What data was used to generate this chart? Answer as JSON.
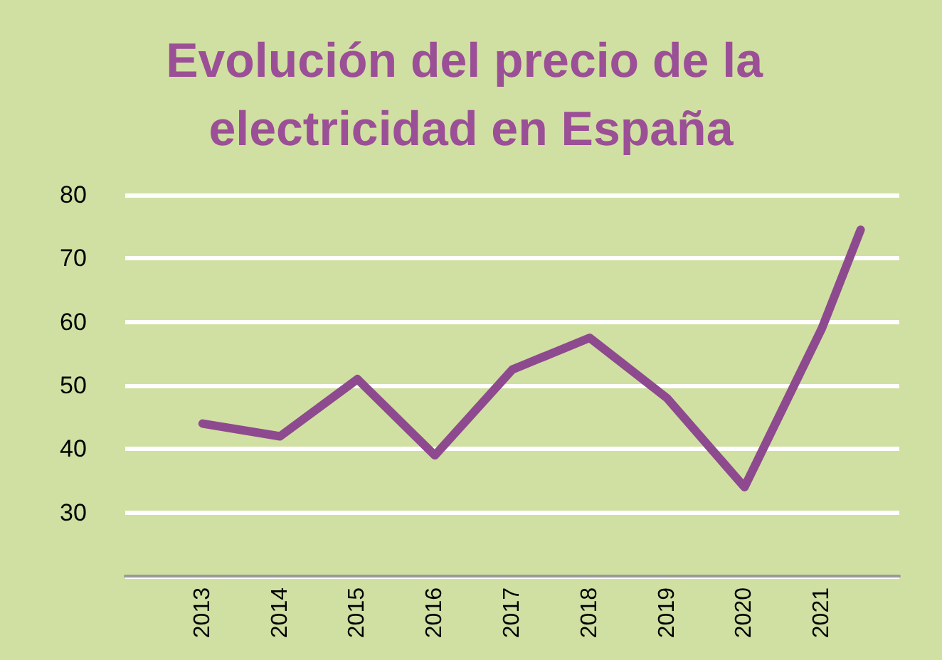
{
  "chart_data": {
    "type": "line",
    "title": "Evolución del precio de la electricidad en España",
    "x": [
      2013,
      2014,
      2015,
      2016,
      2017,
      2018,
      2019,
      2020,
      2021,
      2021.5
    ],
    "series": [
      {
        "color": "#8e4a8e",
        "values": [
          44,
          42,
          51,
          39,
          52.5,
          57.5,
          48,
          34,
          59,
          74.5
        ]
      }
    ],
    "xlim": [
      2012,
      2022
    ],
    "xticks": [
      2013,
      2014,
      2015,
      2016,
      2017,
      2018,
      2019,
      2020,
      2021
    ],
    "ylim": [
      20,
      80
    ],
    "yticks": [
      {
        "value": 20,
        "label": null
      },
      30,
      40,
      50,
      60,
      70,
      80
    ],
    "grid": "y",
    "marker": "none",
    "line_style": "solid"
  }
}
